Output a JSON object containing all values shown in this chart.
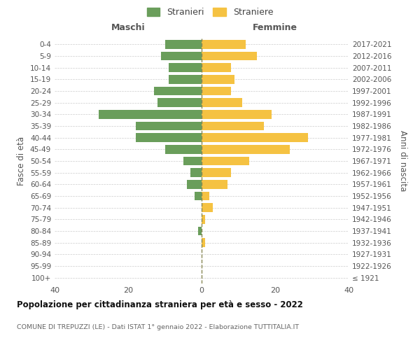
{
  "age_groups": [
    "100+",
    "95-99",
    "90-94",
    "85-89",
    "80-84",
    "75-79",
    "70-74",
    "65-69",
    "60-64",
    "55-59",
    "50-54",
    "45-49",
    "40-44",
    "35-39",
    "30-34",
    "25-29",
    "20-24",
    "15-19",
    "10-14",
    "5-9",
    "0-4"
  ],
  "birth_years": [
    "≤ 1921",
    "1922-1926",
    "1927-1931",
    "1932-1936",
    "1937-1941",
    "1942-1946",
    "1947-1951",
    "1952-1956",
    "1957-1961",
    "1962-1966",
    "1967-1971",
    "1972-1976",
    "1977-1981",
    "1982-1986",
    "1987-1991",
    "1992-1996",
    "1997-2001",
    "2002-2006",
    "2007-2011",
    "2012-2016",
    "2017-2021"
  ],
  "maschi": [
    0,
    0,
    0,
    0,
    1,
    0,
    0,
    2,
    4,
    3,
    5,
    10,
    18,
    18,
    28,
    12,
    13,
    9,
    9,
    11,
    10
  ],
  "femmine": [
    0,
    0,
    0,
    1,
    0,
    1,
    3,
    2,
    7,
    8,
    13,
    24,
    29,
    17,
    19,
    11,
    8,
    9,
    8,
    15,
    12
  ],
  "color_maschi": "#6a9e5b",
  "color_femmine": "#f5c242",
  "background_color": "#ffffff",
  "grid_color": "#cccccc",
  "title": "Popolazione per cittadinanza straniera per età e sesso - 2022",
  "subtitle": "COMUNE DI TREPUZZI (LE) - Dati ISTAT 1° gennaio 2022 - Elaborazione TUTTITALIA.IT",
  "xlabel_left": "Maschi",
  "xlabel_right": "Femmine",
  "ylabel_left": "Fasce di età",
  "ylabel_right": "Anni di nascita",
  "legend_maschi": "Stranieri",
  "legend_femmine": "Straniere",
  "xlim": 40,
  "bar_height": 0.75
}
